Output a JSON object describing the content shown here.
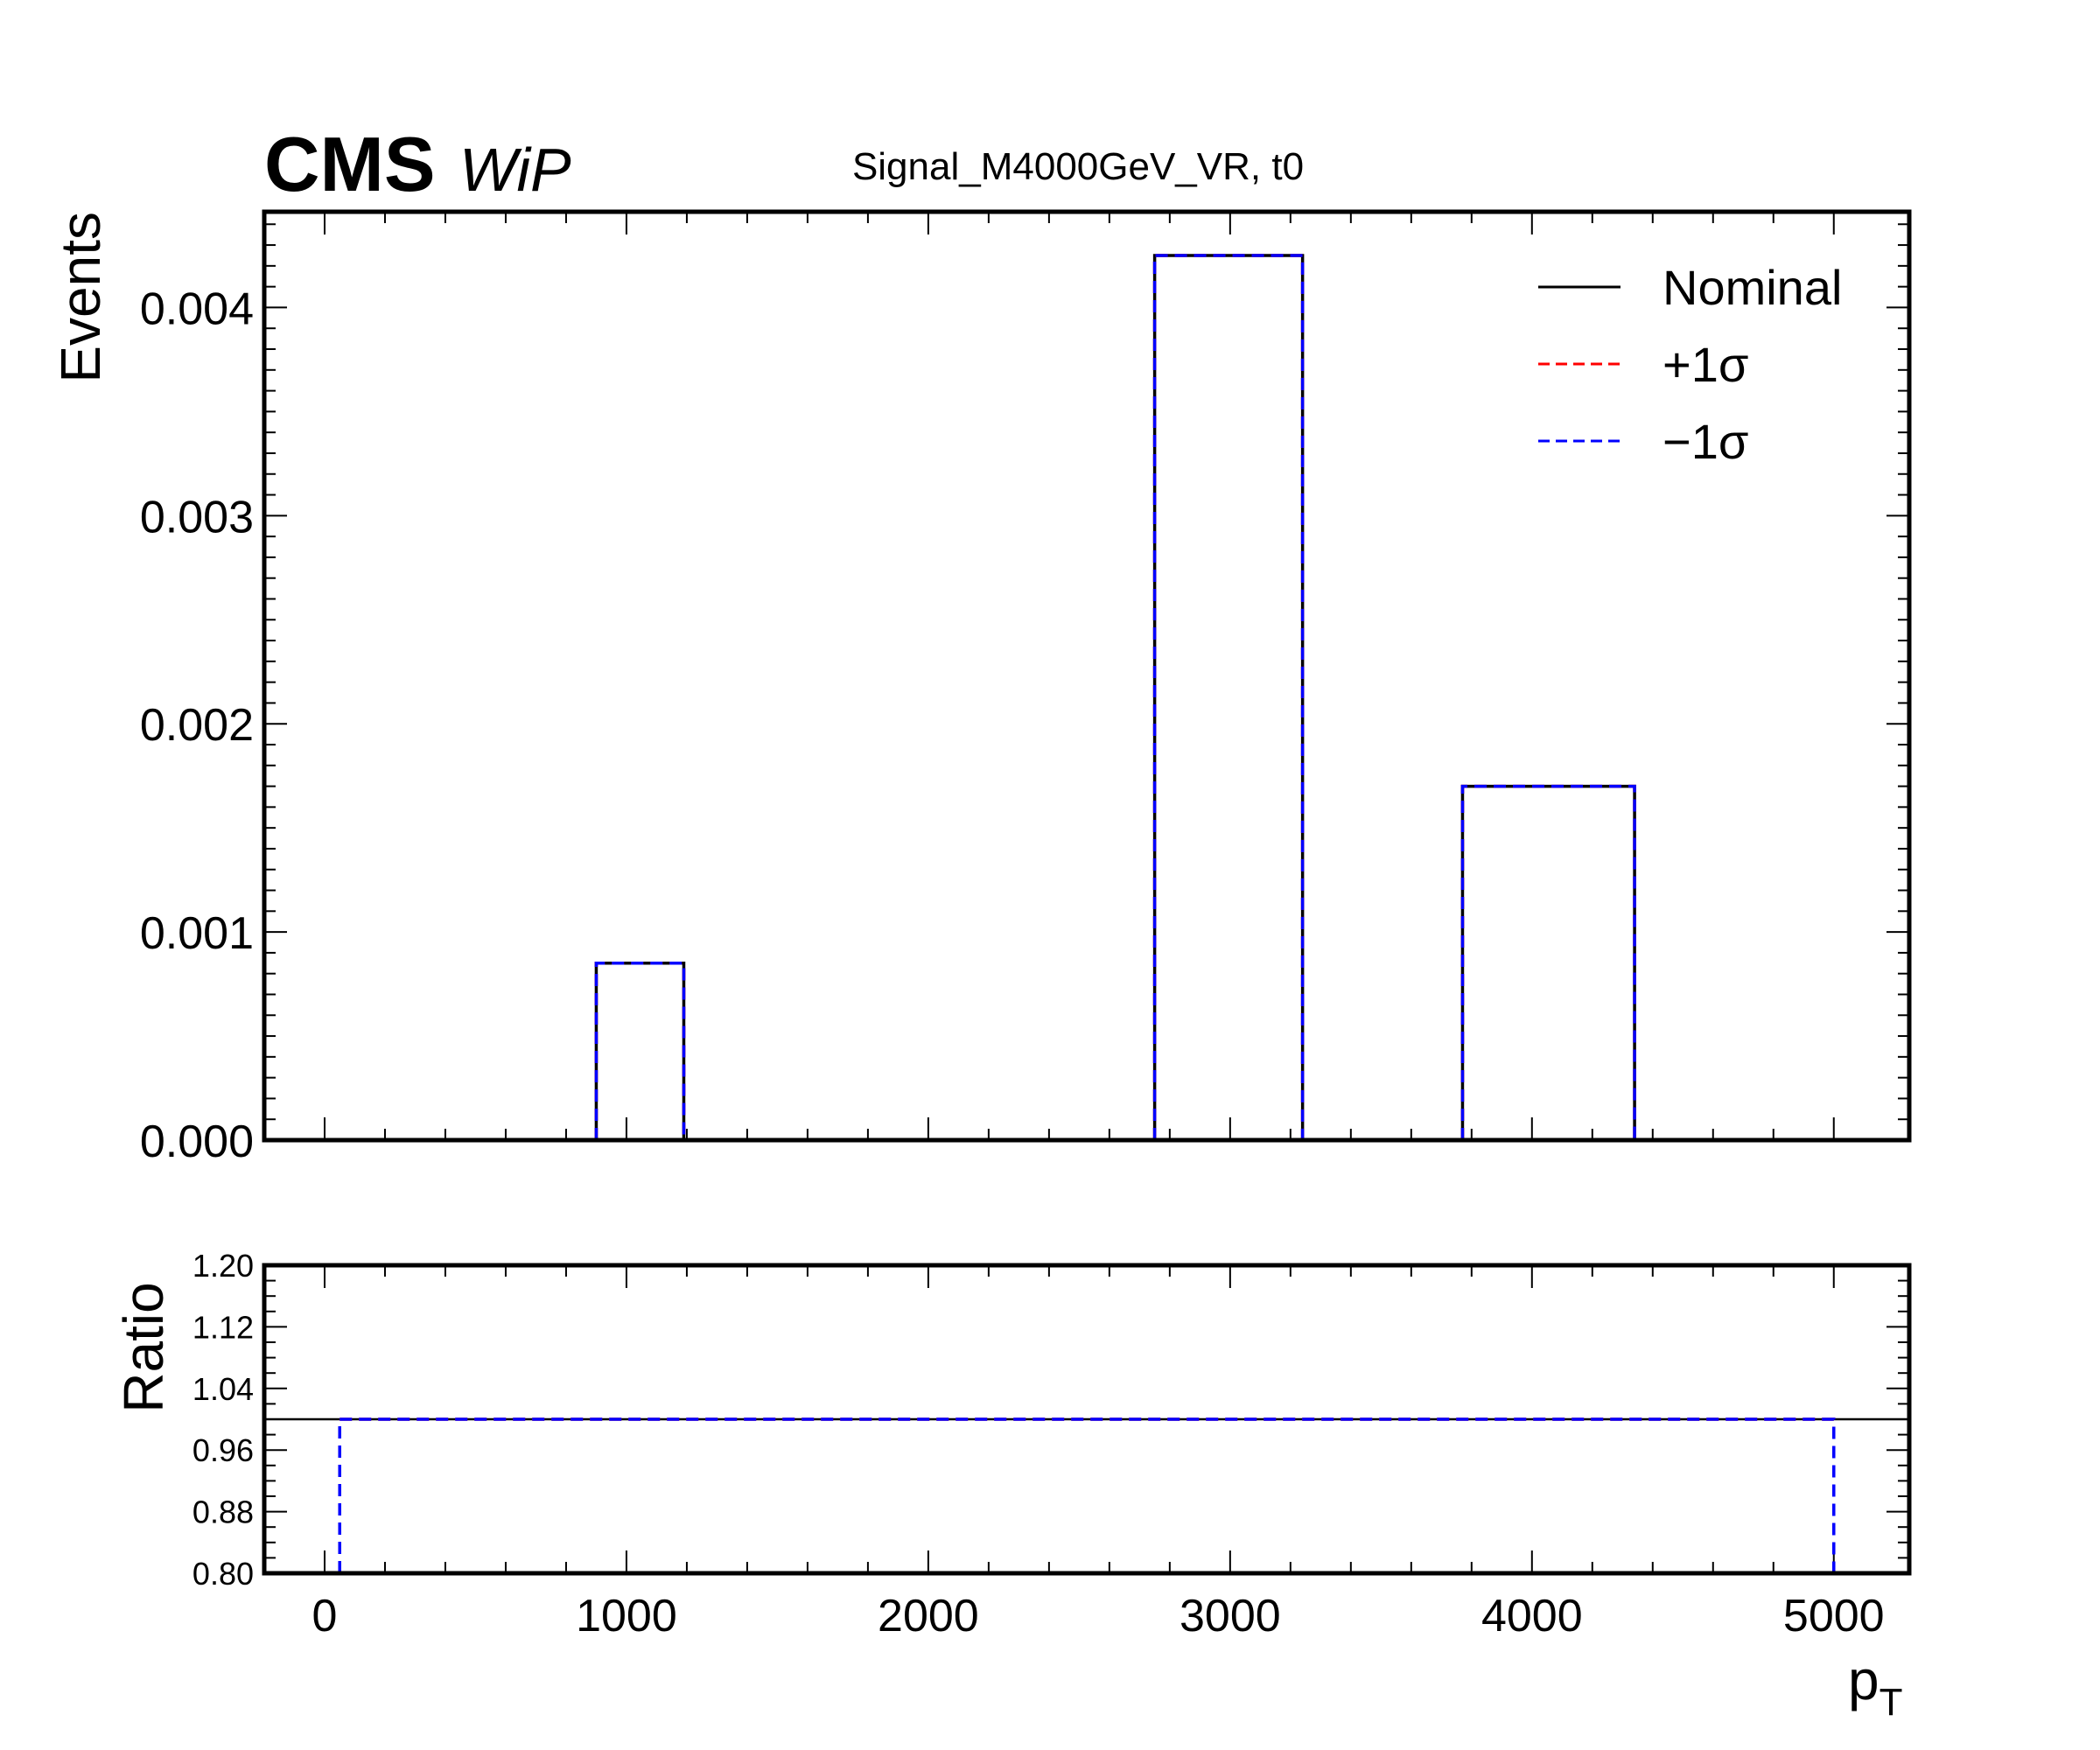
{
  "header": {
    "experiment": "CMS",
    "status": "WiP",
    "title": "Signal_M4000GeV_VR, t0"
  },
  "colors": {
    "nominal": "#000000",
    "up": "#ff0000",
    "down": "#0000ff"
  },
  "chart_data": [
    {
      "type": "step-histogram",
      "panel": "main",
      "title": "Signal_M4000GeV_VR, t0",
      "xlabel": "",
      "ylabel": "Events",
      "xlim": [
        -200,
        5250
      ],
      "ylim": [
        0,
        0.00446
      ],
      "yticks": [
        0.0,
        0.001,
        0.002,
        0.003,
        0.004
      ],
      "ytick_labels": [
        "0.000",
        "0.001",
        "0.002",
        "0.003",
        "0.004"
      ],
      "xticks": [
        0,
        1000,
        2000,
        3000,
        4000,
        5000
      ],
      "grid": false,
      "legend": {
        "placement": "top-right",
        "entries": [
          {
            "label": "Nominal",
            "color": "#000000",
            "style": "solid"
          },
          {
            "label": "+1σ",
            "color": "#ff0000",
            "style": "dashed"
          },
          {
            "label": "−1σ",
            "color": "#0000ff",
            "style": "dashed"
          }
        ]
      },
      "bin_edges": [
        50,
        900,
        1190,
        2750,
        3240,
        3770,
        4340,
        5000
      ],
      "series": [
        {
          "name": "Nominal",
          "values": [
            0,
            0.00085,
            0,
            0.00425,
            0,
            0.0017,
            0
          ]
        },
        {
          "name": "+1σ",
          "values": [
            0,
            0.00085,
            0,
            0.00425,
            0,
            0.0017,
            0
          ]
        },
        {
          "name": "−1σ",
          "values": [
            0,
            0.00085,
            0,
            0.00425,
            0,
            0.0017,
            0
          ]
        }
      ]
    },
    {
      "type": "step-ratio",
      "panel": "ratio",
      "xlabel": "p_T",
      "xlabel_main": "p",
      "xlabel_sub": "T",
      "ylabel": "Ratio",
      "xlim": [
        -200,
        5250
      ],
      "ylim": [
        0.8,
        1.2
      ],
      "yticks": [
        0.8,
        0.88,
        0.96,
        1.04,
        1.12,
        1.2
      ],
      "ytick_labels": [
        "0.80",
        "0.88",
        "0.96",
        "1.04",
        "1.12",
        "1.20"
      ],
      "xticks": [
        0,
        1000,
        2000,
        3000,
        4000,
        5000
      ],
      "xtick_labels": [
        "0",
        "1000",
        "2000",
        "3000",
        "4000",
        "5000"
      ],
      "reference_line": 1.0,
      "bin_edges": [
        50,
        5000
      ],
      "series": [
        {
          "name": "+1σ",
          "values": [
            1.0
          ]
        },
        {
          "name": "−1σ",
          "values": [
            1.0
          ]
        }
      ]
    }
  ]
}
